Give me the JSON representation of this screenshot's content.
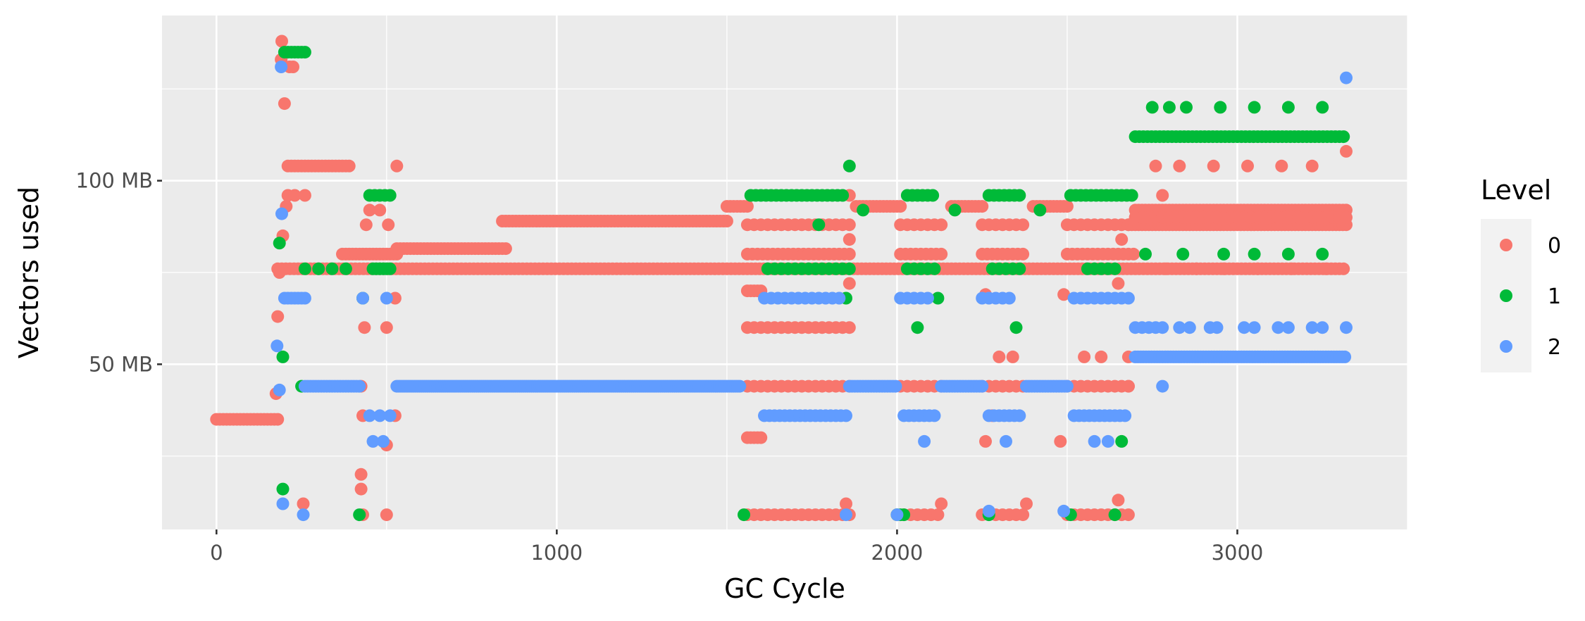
{
  "chart_data": {
    "type": "scatter",
    "title": "",
    "xlabel": "GC Cycle",
    "ylabel": "Vectors used",
    "xlim": [
      -160,
      3500
    ],
    "ylim": [
      5,
      145
    ],
    "x_ticks": [
      0,
      1000,
      2000,
      3000
    ],
    "x_tick_labels": [
      "0",
      "1000",
      "2000",
      "3000"
    ],
    "y_ticks": [
      50,
      100
    ],
    "y_tick_labels": [
      "50 MB",
      "100 MB"
    ],
    "y_unit": "MB",
    "grid": true,
    "legend": {
      "title": "Level",
      "position": "right"
    },
    "series": [
      {
        "name": "0",
        "color": "#F8766D",
        "runs": [
          {
            "y": 35,
            "x_from": 0,
            "x_to": 180,
            "step": 10
          },
          {
            "y": 76,
            "x_from": 180,
            "x_to": 3320,
            "step": 12
          },
          {
            "y": 104,
            "x_from": 210,
            "x_to": 390,
            "step": 10
          },
          {
            "y": 80,
            "x_from": 370,
            "x_to": 530,
            "step": 10
          },
          {
            "y": 81.5,
            "x_from": 530,
            "x_to": 850,
            "step": 10
          },
          {
            "y": 89,
            "x_from": 840,
            "x_to": 1500,
            "step": 10
          },
          {
            "y": 93,
            "x_from": 1500,
            "x_to": 1560,
            "step": 10
          },
          {
            "y": 88,
            "x_from": 1560,
            "x_to": 1860,
            "step": 20
          },
          {
            "y": 80,
            "x_from": 1560,
            "x_to": 1860,
            "step": 15
          },
          {
            "y": 60,
            "x_from": 1560,
            "x_to": 1860,
            "step": 20
          },
          {
            "y": 44,
            "x_from": 1560,
            "x_to": 1860,
            "step": 20
          },
          {
            "y": 9,
            "x_from": 1560,
            "x_to": 1860,
            "step": 20
          },
          {
            "y": 70,
            "x_from": 1560,
            "x_to": 1600,
            "step": 10
          },
          {
            "y": 30,
            "x_from": 1560,
            "x_to": 1600,
            "step": 10
          },
          {
            "y": 93,
            "x_from": 1880,
            "x_to": 2010,
            "step": 10
          },
          {
            "y": 88,
            "x_from": 2010,
            "x_to": 2130,
            "step": 20
          },
          {
            "y": 80,
            "x_from": 2010,
            "x_to": 2130,
            "step": 15
          },
          {
            "y": 44,
            "x_from": 2010,
            "x_to": 2130,
            "step": 20
          },
          {
            "y": 9,
            "x_from": 2000,
            "x_to": 2130,
            "step": 20
          },
          {
            "y": 93,
            "x_from": 2160,
            "x_to": 2250,
            "step": 10
          },
          {
            "y": 88,
            "x_from": 2250,
            "x_to": 2380,
            "step": 20
          },
          {
            "y": 80,
            "x_from": 2250,
            "x_to": 2380,
            "step": 15
          },
          {
            "y": 44,
            "x_from": 2250,
            "x_to": 2380,
            "step": 20
          },
          {
            "y": 9,
            "x_from": 2250,
            "x_to": 2380,
            "step": 20
          },
          {
            "y": 93,
            "x_from": 2400,
            "x_to": 2500,
            "step": 10
          },
          {
            "y": 88,
            "x_from": 2500,
            "x_to": 2680,
            "step": 20
          },
          {
            "y": 80,
            "x_from": 2500,
            "x_to": 2700,
            "step": 15
          },
          {
            "y": 44,
            "x_from": 2500,
            "x_to": 2680,
            "step": 20
          },
          {
            "y": 9,
            "x_from": 2500,
            "x_to": 2680,
            "step": 20
          },
          {
            "y": 92,
            "x_from": 2700,
            "x_to": 3320,
            "step": 10
          },
          {
            "y": 88,
            "x_from": 2680,
            "x_to": 3320,
            "step": 10
          },
          {
            "y": 90,
            "x_from": 2700,
            "x_to": 3320,
            "step": 20
          }
        ],
        "points": [
          [
            175,
            42
          ],
          [
            180,
            63
          ],
          [
            185,
            75
          ],
          [
            190,
            133
          ],
          [
            192,
            138
          ],
          [
            195,
            85
          ],
          [
            200,
            121
          ],
          [
            205,
            93
          ],
          [
            210,
            96
          ],
          [
            215,
            131
          ],
          [
            225,
            131
          ],
          [
            230,
            96
          ],
          [
            260,
            96
          ],
          [
            255,
            12
          ],
          [
            425,
            44
          ],
          [
            430,
            36
          ],
          [
            425,
            20
          ],
          [
            425,
            16
          ],
          [
            430,
            9
          ],
          [
            435,
            60
          ],
          [
            440,
            88
          ],
          [
            450,
            92
          ],
          [
            480,
            92
          ],
          [
            500,
            60
          ],
          [
            500,
            28
          ],
          [
            500,
            9
          ],
          [
            505,
            88
          ],
          [
            530,
            104
          ],
          [
            525,
            68
          ],
          [
            525,
            36
          ],
          [
            1850,
            12
          ],
          [
            1860,
            72
          ],
          [
            1860,
            84
          ],
          [
            1860,
            96
          ],
          [
            2130,
            12
          ],
          [
            2260,
            29
          ],
          [
            2260,
            69
          ],
          [
            2280,
            36
          ],
          [
            2300,
            52
          ],
          [
            2340,
            52
          ],
          [
            2380,
            12
          ],
          [
            2480,
            29
          ],
          [
            2490,
            69
          ],
          [
            2550,
            52
          ],
          [
            2600,
            52
          ],
          [
            2650,
            72
          ],
          [
            2660,
            84
          ],
          [
            2650,
            13
          ],
          [
            2680,
            52
          ],
          [
            2680,
            44
          ],
          [
            2760,
            104
          ],
          [
            2780,
            96
          ],
          [
            2830,
            104
          ],
          [
            2930,
            104
          ],
          [
            3030,
            104
          ],
          [
            3130,
            104
          ],
          [
            3220,
            104
          ],
          [
            3320,
            108
          ],
          [
            2790,
            76
          ],
          [
            2880,
            76
          ],
          [
            2960,
            76
          ],
          [
            3060,
            76
          ],
          [
            3160,
            76
          ],
          [
            3260,
            76
          ]
        ]
      },
      {
        "name": "1",
        "color": "#00BA38",
        "runs": [
          {
            "y": 135,
            "x_from": 200,
            "x_to": 260,
            "step": 10
          },
          {
            "y": 76,
            "x_from": 260,
            "x_to": 380,
            "step": 40
          },
          {
            "y": 76,
            "x_from": 460,
            "x_to": 510,
            "step": 10
          },
          {
            "y": 96,
            "x_from": 450,
            "x_to": 520,
            "step": 15
          },
          {
            "y": 96,
            "x_from": 1570,
            "x_to": 1840,
            "step": 15
          },
          {
            "y": 76,
            "x_from": 1620,
            "x_to": 1860,
            "step": 20
          },
          {
            "y": 96,
            "x_from": 2030,
            "x_to": 2110,
            "step": 15
          },
          {
            "y": 76,
            "x_from": 2030,
            "x_to": 2110,
            "step": 20
          },
          {
            "y": 96,
            "x_from": 2270,
            "x_to": 2360,
            "step": 15
          },
          {
            "y": 76,
            "x_from": 2280,
            "x_to": 2360,
            "step": 20
          },
          {
            "y": 96,
            "x_from": 2510,
            "x_to": 2690,
            "step": 15
          },
          {
            "y": 76,
            "x_from": 2560,
            "x_to": 2640,
            "step": 20
          },
          {
            "y": 112,
            "x_from": 2700,
            "x_to": 3320,
            "step": 12
          }
        ],
        "points": [
          [
            185,
            83
          ],
          [
            195,
            52
          ],
          [
            195,
            16
          ],
          [
            250,
            44
          ],
          [
            430,
            68
          ],
          [
            420,
            9
          ],
          [
            1550,
            9
          ],
          [
            1770,
            88
          ],
          [
            1860,
            104
          ],
          [
            1850,
            68
          ],
          [
            1900,
            92
          ],
          [
            2000,
            9
          ],
          [
            2010,
            9
          ],
          [
            2020,
            9
          ],
          [
            2060,
            60
          ],
          [
            2120,
            68
          ],
          [
            2170,
            92
          ],
          [
            2350,
            60
          ],
          [
            2420,
            92
          ],
          [
            2270,
            9
          ],
          [
            2510,
            9
          ],
          [
            2640,
            9
          ],
          [
            2660,
            29
          ],
          [
            2730,
            80
          ],
          [
            2840,
            80
          ],
          [
            2960,
            80
          ],
          [
            3050,
            80
          ],
          [
            3150,
            80
          ],
          [
            3250,
            80
          ],
          [
            2750,
            120
          ],
          [
            2800,
            120
          ],
          [
            2850,
            120
          ],
          [
            2950,
            120
          ],
          [
            3050,
            120
          ],
          [
            3150,
            120
          ],
          [
            3250,
            120
          ]
        ]
      },
      {
        "name": "2",
        "color": "#619CFF",
        "runs": [
          {
            "y": 44,
            "x_from": 260,
            "x_to": 420,
            "step": 8
          },
          {
            "y": 44,
            "x_from": 530,
            "x_to": 1540,
            "step": 6
          },
          {
            "y": 68,
            "x_from": 200,
            "x_to": 260,
            "step": 10
          },
          {
            "y": 68,
            "x_from": 1610,
            "x_to": 1840,
            "step": 20
          },
          {
            "y": 36,
            "x_from": 1610,
            "x_to": 1850,
            "step": 15
          },
          {
            "y": 44,
            "x_from": 1860,
            "x_to": 2000,
            "step": 8
          },
          {
            "y": 68,
            "x_from": 2010,
            "x_to": 2100,
            "step": 20
          },
          {
            "y": 36,
            "x_from": 2020,
            "x_to": 2110,
            "step": 15
          },
          {
            "y": 44,
            "x_from": 2130,
            "x_to": 2250,
            "step": 8
          },
          {
            "y": 68,
            "x_from": 2250,
            "x_to": 2340,
            "step": 20
          },
          {
            "y": 36,
            "x_from": 2270,
            "x_to": 2360,
            "step": 15
          },
          {
            "y": 44,
            "x_from": 2380,
            "x_to": 2500,
            "step": 8
          },
          {
            "y": 68,
            "x_from": 2520,
            "x_to": 2680,
            "step": 20
          },
          {
            "y": 36,
            "x_from": 2520,
            "x_to": 2680,
            "step": 15
          },
          {
            "y": 52,
            "x_from": 2700,
            "x_to": 3320,
            "step": 8
          },
          {
            "y": 60,
            "x_from": 2700,
            "x_to": 2780,
            "step": 20
          }
        ],
        "points": [
          [
            178,
            55
          ],
          [
            185,
            43
          ],
          [
            190,
            131
          ],
          [
            192,
            91
          ],
          [
            195,
            12
          ],
          [
            255,
            9
          ],
          [
            430,
            68
          ],
          [
            450,
            36
          ],
          [
            460,
            29
          ],
          [
            480,
            36
          ],
          [
            490,
            29
          ],
          [
            500,
            68
          ],
          [
            510,
            36
          ],
          [
            1850,
            9
          ],
          [
            2000,
            9
          ],
          [
            2080,
            29
          ],
          [
            2270,
            10
          ],
          [
            2320,
            29
          ],
          [
            2490,
            10
          ],
          [
            2580,
            29
          ],
          [
            2620,
            29
          ],
          [
            2780,
            44
          ],
          [
            3320,
            128
          ],
          [
            2830,
            60
          ],
          [
            2860,
            60
          ],
          [
            2920,
            60
          ],
          [
            2940,
            60
          ],
          [
            3020,
            60
          ],
          [
            3050,
            60
          ],
          [
            3120,
            60
          ],
          [
            3150,
            60
          ],
          [
            3220,
            60
          ],
          [
            3250,
            60
          ],
          [
            3320,
            60
          ]
        ]
      }
    ]
  }
}
